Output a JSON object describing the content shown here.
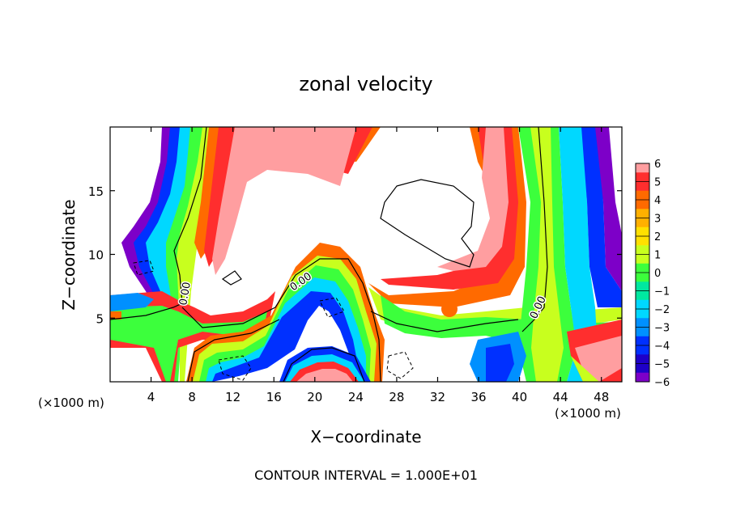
{
  "chart_data": {
    "type": "heatmap",
    "title": "zonal velocity",
    "xlabel": "X−coordinate",
    "ylabel": "Z−coordinate",
    "x_unit_left": "(×1000 m)",
    "x_unit_right": "(×1000 m)",
    "footer": "CONTOUR INTERVAL = 1.000E+01",
    "xlim": [
      0,
      50
    ],
    "ylim": [
      0,
      20
    ],
    "x_ticks": [
      4,
      8,
      12,
      16,
      20,
      24,
      28,
      32,
      36,
      40,
      44,
      48
    ],
    "y_ticks": [
      5,
      10,
      15
    ],
    "contour_labels": [
      "0.00",
      "0.00",
      "0.00"
    ],
    "colorbar": {
      "levels": [
        6,
        5,
        4,
        3,
        2,
        1,
        0,
        -1,
        -2,
        -3,
        -4,
        -5,
        -6
      ],
      "colors": [
        "#ff9ea0",
        "#ff2e2e",
        "#ff6a00",
        "#ffb000",
        "#ffe000",
        "#c8ff1e",
        "#3cff3c",
        "#00e8a0",
        "#00d8ff",
        "#0090ff",
        "#0030ff",
        "#1e00c8",
        "#7d00c8"
      ]
    },
    "grid": false,
    "legend": "colorbar right"
  }
}
